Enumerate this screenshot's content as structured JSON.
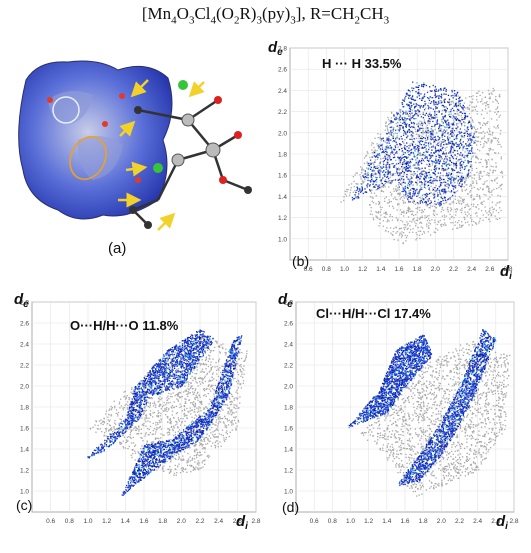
{
  "header": {
    "formula_parts": [
      "[Mn",
      "4",
      "O",
      "3",
      "Cl",
      "4",
      "(O",
      "2",
      "R)",
      "3",
      "(py)",
      "3",
      "], R=CH",
      "2",
      "CH",
      "3"
    ]
  },
  "panel_a": {
    "label": "(a)"
  },
  "colors": {
    "gray": "#a9a9a9",
    "blue": "#1d3fd6",
    "deep_blue": "#0b1f9e",
    "cyan": "#2fb6e8"
  },
  "chart_data": [
    {
      "type": "scatter",
      "id": "b",
      "panel_label": "(b)",
      "annotation": "H ··· H 33.5%",
      "xlabel": "di",
      "ylabel": "de",
      "xlim": [
        0.4,
        2.8
      ],
      "ylim": [
        0.8,
        2.8
      ],
      "xticks": [
        "0.6",
        "0.8",
        "1.0",
        "1.2",
        "1.4",
        "1.6",
        "1.8",
        "2.0",
        "2.2",
        "2.4",
        "2.6",
        "2.8"
      ],
      "yticks": [
        "1.0",
        "1.2",
        "1.4",
        "1.6",
        "1.8",
        "2.0",
        "2.2",
        "2.4",
        "2.6",
        "2.8"
      ],
      "series": [
        {
          "role": "all_contacts",
          "polygons": [
            [
              [
                1.5,
                2.2
              ],
              [
                2.7,
                2.45
              ],
              [
                2.75,
                1.2
              ],
              [
                2.0,
                1.05
              ],
              [
                1.6,
                0.95
              ],
              [
                1.25,
                1.2
              ],
              [
                1.3,
                1.6
              ],
              [
                0.9,
                1.3
              ],
              [
                1.25,
                1.85
              ],
              [
                1.5,
                2.2
              ]
            ]
          ]
        },
        {
          "role": "highlighted",
          "polygons": [
            [
              [
                1.05,
                1.35
              ],
              [
                1.45,
                2.05
              ],
              [
                1.75,
                2.5
              ],
              [
                2.25,
                2.4
              ],
              [
                2.45,
                1.95
              ],
              [
                2.35,
                1.55
              ],
              [
                2.05,
                1.3
              ],
              [
                1.7,
                1.35
              ],
              [
                1.55,
                1.55
              ],
              [
                1.3,
                1.45
              ],
              [
                1.05,
                1.35
              ]
            ]
          ]
        }
      ]
    },
    {
      "type": "scatter",
      "id": "c",
      "panel_label": "(c)",
      "annotation": "O···H/H···O 11.8%",
      "xlabel": "di",
      "ylabel": "de",
      "xlim": [
        0.4,
        2.8
      ],
      "ylim": [
        0.8,
        2.8
      ],
      "xticks": [
        "0.6",
        "0.8",
        "1.0",
        "1.2",
        "1.4",
        "1.6",
        "1.8",
        "2.0",
        "2.2",
        "2.4",
        "2.6",
        "2.8"
      ],
      "yticks": [
        "1.0",
        "1.2",
        "1.4",
        "1.6",
        "1.8",
        "2.0",
        "2.2",
        "2.4",
        "2.6",
        "2.8"
      ],
      "series": [
        {
          "role": "all_contacts",
          "polygons": [
            [
              [
                1.0,
                1.6
              ],
              [
                1.3,
                1.9
              ],
              [
                1.6,
                2.1
              ],
              [
                2.1,
                2.5
              ],
              [
                2.7,
                2.35
              ],
              [
                2.6,
                1.6
              ],
              [
                2.2,
                1.2
              ],
              [
                1.9,
                1.15
              ],
              [
                1.55,
                1.25
              ],
              [
                1.3,
                1.45
              ],
              [
                1.0,
                1.6
              ]
            ]
          ]
        },
        {
          "role": "highlighted",
          "polygons": [
            [
              [
                0.95,
                1.3
              ],
              [
                1.4,
                1.7
              ],
              [
                1.5,
                2.0
              ],
              [
                1.85,
                2.35
              ],
              [
                2.2,
                2.55
              ],
              [
                2.35,
                2.45
              ],
              [
                2.0,
                2.0
              ],
              [
                1.65,
                1.9
              ],
              [
                1.55,
                1.7
              ],
              [
                1.2,
                1.4
              ],
              [
                0.95,
                1.3
              ]
            ],
            [
              [
                1.35,
                0.95
              ],
              [
                1.6,
                1.45
              ],
              [
                1.9,
                1.5
              ],
              [
                2.3,
                1.8
              ],
              [
                2.55,
                2.45
              ],
              [
                2.65,
                2.5
              ],
              [
                2.5,
                1.9
              ],
              [
                2.2,
                1.5
              ],
              [
                1.85,
                1.3
              ],
              [
                1.55,
                1.1
              ],
              [
                1.35,
                0.95
              ]
            ]
          ]
        }
      ]
    },
    {
      "type": "scatter",
      "id": "d",
      "panel_label": "(d)",
      "annotation": "Cl···H/H···Cl 17.4%",
      "xlabel": "di",
      "ylabel": "de",
      "xlim": [
        0.4,
        2.8
      ],
      "ylim": [
        0.8,
        2.8
      ],
      "xticks": [
        "0.6",
        "0.8",
        "1.0",
        "1.2",
        "1.4",
        "1.6",
        "1.8",
        "2.0",
        "2.2",
        "2.4",
        "2.6",
        "2.8"
      ],
      "yticks": [
        "1.0",
        "1.2",
        "1.4",
        "1.6",
        "1.8",
        "2.0",
        "2.2",
        "2.4",
        "2.6",
        "2.8"
      ],
      "series": [
        {
          "role": "all_contacts",
          "polygons": [
            [
              [
                1.1,
                1.55
              ],
              [
                1.4,
                1.85
              ],
              [
                1.8,
                2.2
              ],
              [
                2.3,
                2.45
              ],
              [
                2.75,
                2.3
              ],
              [
                2.7,
                1.6
              ],
              [
                2.4,
                1.2
              ],
              [
                2.0,
                1.05
              ],
              [
                1.7,
                0.95
              ],
              [
                1.5,
                1.2
              ],
              [
                1.1,
                1.55
              ]
            ]
          ]
        },
        {
          "role": "highlighted",
          "polygons": [
            [
              [
                0.95,
                1.6
              ],
              [
                1.3,
                1.95
              ],
              [
                1.5,
                2.35
              ],
              [
                1.8,
                2.5
              ],
              [
                1.9,
                2.3
              ],
              [
                1.6,
                2.0
              ],
              [
                1.4,
                1.75
              ],
              [
                0.95,
                1.6
              ]
            ],
            [
              [
                1.5,
                1.05
              ],
              [
                1.95,
                1.6
              ],
              [
                2.2,
                2.0
              ],
              [
                2.45,
                2.55
              ],
              [
                2.6,
                2.45
              ],
              [
                2.35,
                1.9
              ],
              [
                2.05,
                1.4
              ],
              [
                1.75,
                1.1
              ],
              [
                1.5,
                1.05
              ]
            ]
          ]
        }
      ]
    }
  ]
}
